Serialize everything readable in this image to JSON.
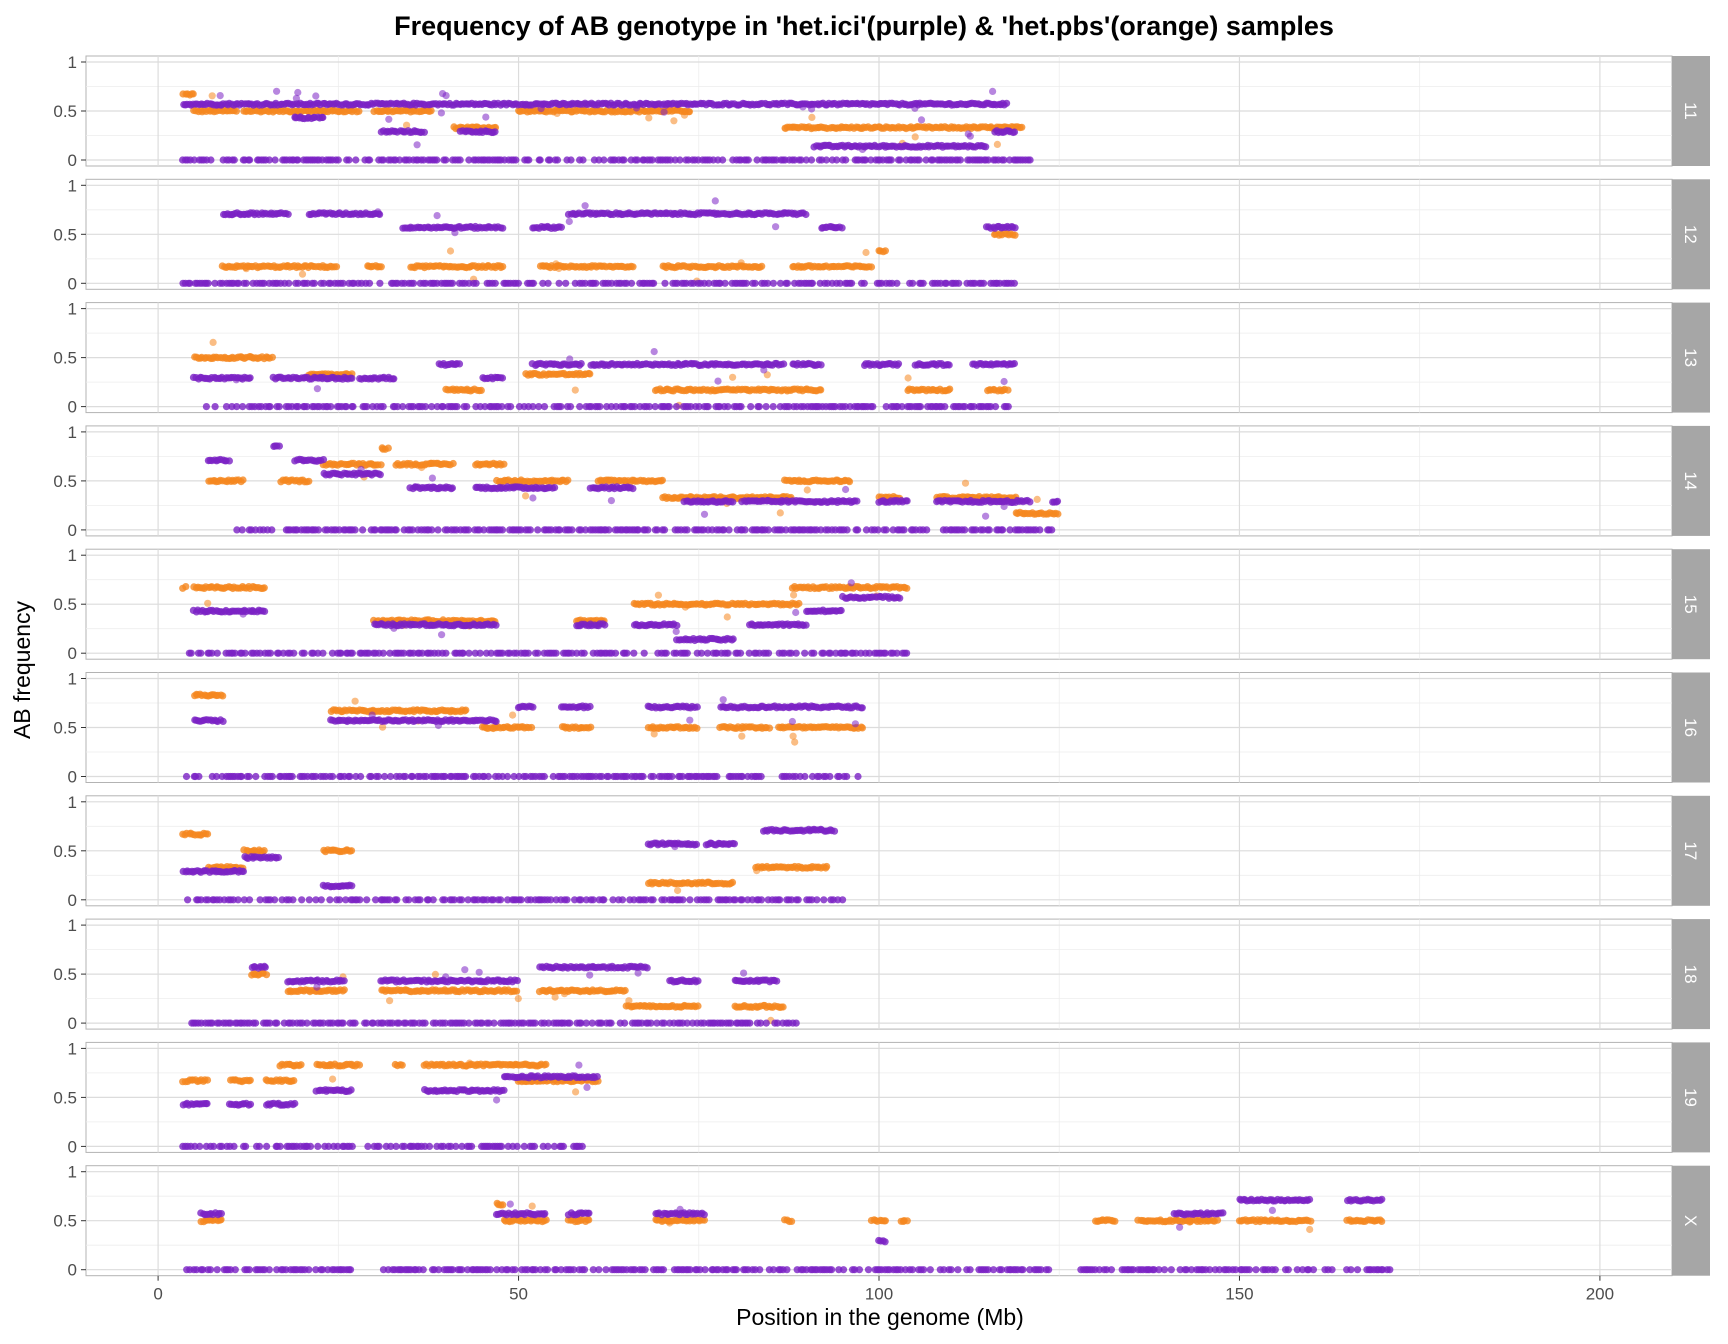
{
  "chart_data": {
    "type": "scatter",
    "title": "Frequency of AB genotype in 'het.ici'(purple) & 'het.pbs'(orange) samples",
    "xlabel": "Position in the genome (Mb)",
    "ylabel": "AB frequency",
    "xlim": [
      -10,
      210
    ],
    "ylim": [
      0,
      1
    ],
    "x_ticks": [
      0,
      50,
      100,
      150,
      200
    ],
    "y_ticks": [
      0,
      0.5,
      1
    ],
    "y_tick_labels": [
      "0",
      "0.5",
      "1"
    ],
    "grid": true,
    "facet_by": "chromosome",
    "series_colors": {
      "het.ici": "#7B22C4",
      "het.pbs": "#F5871F"
    },
    "facets": [
      {
        "label": "11",
        "het.ici": [
          [
            3.5,
            118,
            0.57
          ],
          [
            19,
            23,
            0.43
          ],
          [
            31,
            37,
            0.29
          ],
          [
            42,
            47,
            0.29
          ],
          [
            91,
            115,
            0.14
          ],
          [
            116,
            119,
            0.29
          ],
          [
            3.5,
            121,
            0
          ]
        ],
        "het.pbs": [
          [
            3.5,
            5,
            0.67
          ],
          [
            5,
            11,
            0.5
          ],
          [
            12,
            23,
            0.5
          ],
          [
            23,
            28,
            0.5
          ],
          [
            30,
            38,
            0.5
          ],
          [
            41,
            47,
            0.33
          ],
          [
            50,
            74,
            0.5
          ],
          [
            87,
            120,
            0.33
          ]
        ]
      },
      {
        "label": "12",
        "het.ici": [
          [
            9,
            18,
            0.71
          ],
          [
            21,
            31,
            0.71
          ],
          [
            34,
            48,
            0.57
          ],
          [
            52,
            56,
            0.57
          ],
          [
            57,
            74,
            0.71
          ],
          [
            74,
            87,
            0.71
          ],
          [
            87,
            90,
            0.71
          ],
          [
            92,
            95,
            0.57
          ],
          [
            115,
            119,
            0.57
          ],
          [
            3.5,
            119,
            0
          ]
        ],
        "het.pbs": [
          [
            9,
            18,
            0.17
          ],
          [
            18,
            25,
            0.17
          ],
          [
            29,
            31,
            0.17
          ],
          [
            35,
            48,
            0.17
          ],
          [
            53,
            66,
            0.17
          ],
          [
            70,
            84,
            0.17
          ],
          [
            88,
            99,
            0.17
          ],
          [
            100,
            101,
            0.33
          ],
          [
            116,
            119,
            0.5
          ]
        ]
      },
      {
        "label": "13",
        "het.ici": [
          [
            5,
            13,
            0.29
          ],
          [
            16,
            27,
            0.29
          ],
          [
            28,
            33,
            0.29
          ],
          [
            39,
            42,
            0.43
          ],
          [
            45,
            48,
            0.29
          ],
          [
            52,
            59,
            0.43
          ],
          [
            60,
            67,
            0.43
          ],
          [
            67,
            73,
            0.43
          ],
          [
            73,
            87,
            0.43
          ],
          [
            88,
            92,
            0.43
          ],
          [
            98,
            103,
            0.43
          ],
          [
            105,
            110,
            0.43
          ],
          [
            113,
            119,
            0.43
          ],
          [
            6,
            118,
            0
          ]
        ],
        "het.pbs": [
          [
            5,
            13,
            0.5
          ],
          [
            13,
            16,
            0.5
          ],
          [
            21,
            27,
            0.33
          ],
          [
            40,
            45,
            0.17
          ],
          [
            51,
            60,
            0.33
          ],
          [
            69,
            92,
            0.17
          ],
          [
            104,
            110,
            0.17
          ],
          [
            115,
            118,
            0.17
          ]
        ]
      },
      {
        "label": "14",
        "het.ici": [
          [
            7,
            10,
            0.71
          ],
          [
            16,
            17,
            0.86
          ],
          [
            19,
            23,
            0.71
          ],
          [
            23,
            31,
            0.57
          ],
          [
            35,
            41,
            0.43
          ],
          [
            44,
            55,
            0.43
          ],
          [
            60,
            66,
            0.43
          ],
          [
            73,
            80,
            0.29
          ],
          [
            81,
            97,
            0.29
          ],
          [
            100,
            104,
            0.29
          ],
          [
            108,
            121,
            0.29
          ],
          [
            124,
            125,
            0.29
          ],
          [
            11,
            125,
            0
          ]
        ],
        "het.pbs": [
          [
            7,
            12,
            0.5
          ],
          [
            17,
            21,
            0.5
          ],
          [
            23,
            31,
            0.67
          ],
          [
            31,
            32,
            0.83
          ],
          [
            33,
            41,
            0.67
          ],
          [
            44,
            48,
            0.67
          ],
          [
            47,
            57,
            0.5
          ],
          [
            61,
            70,
            0.5
          ],
          [
            70,
            80,
            0.33
          ],
          [
            80,
            88,
            0.33
          ],
          [
            87,
            96,
            0.5
          ],
          [
            100,
            103,
            0.33
          ],
          [
            108,
            119,
            0.33
          ],
          [
            119,
            125,
            0.17
          ]
        ]
      },
      {
        "label": "15",
        "het.ici": [
          [
            5,
            15,
            0.43
          ],
          [
            30,
            47,
            0.29
          ],
          [
            58,
            62,
            0.29
          ],
          [
            66,
            72,
            0.29
          ],
          [
            72,
            80,
            0.14
          ],
          [
            82,
            90,
            0.29
          ],
          [
            90,
            95,
            0.43
          ],
          [
            95,
            103,
            0.57
          ],
          [
            4,
            104,
            0
          ]
        ],
        "het.pbs": [
          [
            3.5,
            4,
            0.67
          ],
          [
            5,
            15,
            0.67
          ],
          [
            30,
            47,
            0.33
          ],
          [
            58,
            62,
            0.33
          ],
          [
            66,
            72,
            0.5
          ],
          [
            72,
            89,
            0.5
          ],
          [
            88,
            104,
            0.67
          ]
        ]
      },
      {
        "label": "16",
        "het.ici": [
          [
            5,
            9,
            0.57
          ],
          [
            24,
            36,
            0.57
          ],
          [
            36,
            43,
            0.57
          ],
          [
            43,
            47,
            0.57
          ],
          [
            50,
            52,
            0.71
          ],
          [
            56,
            60,
            0.71
          ],
          [
            68,
            75,
            0.71
          ],
          [
            78,
            85,
            0.71
          ],
          [
            85,
            91,
            0.71
          ],
          [
            91,
            98,
            0.71
          ],
          [
            4,
            98,
            0
          ]
        ],
        "het.pbs": [
          [
            5,
            9,
            0.83
          ],
          [
            24,
            30,
            0.67
          ],
          [
            30,
            36,
            0.67
          ],
          [
            36,
            43,
            0.67
          ],
          [
            45,
            52,
            0.5
          ],
          [
            56,
            60,
            0.5
          ],
          [
            68,
            75,
            0.5
          ],
          [
            78,
            85,
            0.5
          ],
          [
            86,
            98,
            0.5
          ]
        ]
      },
      {
        "label": "17",
        "het.ici": [
          [
            3.5,
            8,
            0.29
          ],
          [
            8,
            12,
            0.29
          ],
          [
            12,
            17,
            0.43
          ],
          [
            23,
            27,
            0.14
          ],
          [
            68,
            75,
            0.57
          ],
          [
            76,
            80,
            0.57
          ],
          [
            84,
            94,
            0.71
          ],
          [
            4,
            95,
            0
          ]
        ],
        "het.pbs": [
          [
            3.5,
            7,
            0.67
          ],
          [
            7,
            12,
            0.33
          ],
          [
            12,
            15,
            0.5
          ],
          [
            23,
            27,
            0.5
          ],
          [
            68,
            75,
            0.17
          ],
          [
            75,
            80,
            0.17
          ],
          [
            83,
            93,
            0.33
          ]
        ]
      },
      {
        "label": "18",
        "het.ici": [
          [
            13,
            15,
            0.57
          ],
          [
            18,
            26,
            0.43
          ],
          [
            31,
            50,
            0.43
          ],
          [
            53,
            68,
            0.57
          ],
          [
            71,
            75,
            0.43
          ],
          [
            80,
            86,
            0.43
          ],
          [
            4,
            89,
            0
          ]
        ],
        "het.pbs": [
          [
            13,
            15,
            0.5
          ],
          [
            18,
            26,
            0.33
          ],
          [
            31,
            50,
            0.33
          ],
          [
            53,
            65,
            0.33
          ],
          [
            65,
            75,
            0.17
          ],
          [
            80,
            87,
            0.17
          ]
        ]
      },
      {
        "label": "19",
        "het.ici": [
          [
            3.5,
            7,
            0.43
          ],
          [
            10,
            13,
            0.43
          ],
          [
            15,
            19,
            0.43
          ],
          [
            22,
            27,
            0.57
          ],
          [
            37,
            48,
            0.57
          ],
          [
            48,
            61,
            0.71
          ],
          [
            3.5,
            59,
            0
          ]
        ],
        "het.pbs": [
          [
            3.5,
            7,
            0.67
          ],
          [
            10,
            13,
            0.67
          ],
          [
            15,
            19,
            0.67
          ],
          [
            17,
            20,
            0.83
          ],
          [
            22,
            28,
            0.83
          ],
          [
            33,
            34,
            0.83
          ],
          [
            37,
            54,
            0.83
          ],
          [
            50,
            61,
            0.67
          ]
        ]
      },
      {
        "label": "X",
        "het.ici": [
          [
            6,
            9,
            0.57
          ],
          [
            47,
            54,
            0.57
          ],
          [
            57,
            60,
            0.57
          ],
          [
            69,
            76,
            0.57
          ],
          [
            100,
            101,
            0.29
          ],
          [
            141,
            148,
            0.57
          ],
          [
            150,
            160,
            0.71
          ],
          [
            165,
            170,
            0.71
          ],
          [
            4,
            27,
            0
          ],
          [
            31,
            124,
            0
          ],
          [
            128,
            171,
            0
          ]
        ],
        "het.pbs": [
          [
            6,
            9,
            0.5
          ],
          [
            47,
            48,
            0.67
          ],
          [
            48,
            54,
            0.5
          ],
          [
            57,
            60,
            0.5
          ],
          [
            69,
            76,
            0.5
          ],
          [
            87,
            88,
            0.5
          ],
          [
            99,
            101,
            0.5
          ],
          [
            103,
            104,
            0.5
          ],
          [
            130,
            133,
            0.5
          ],
          [
            136,
            141,
            0.5
          ],
          [
            141,
            147,
            0.5
          ],
          [
            150,
            160,
            0.5
          ],
          [
            165,
            170,
            0.5
          ]
        ]
      }
    ]
  }
}
